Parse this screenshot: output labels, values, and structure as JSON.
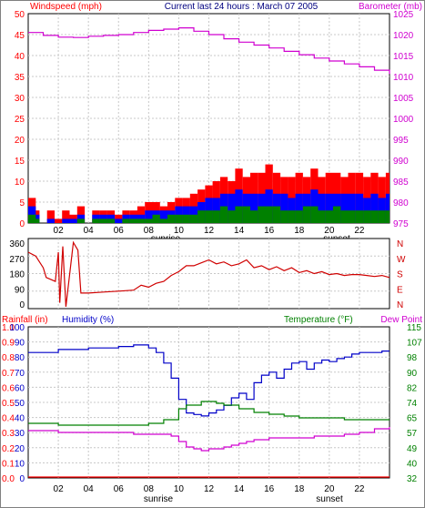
{
  "header": {
    "left_title": "Windspeed (mph)",
    "center_title": "Current last 24 hours : March 07 2005",
    "right_title": "Barometer (mb)"
  },
  "colors": {
    "frame": "#000000",
    "grid": "#c8c8c8",
    "wind_gust": "#ff0000",
    "wind_avg": "#0000ff",
    "wind_low": "#008000",
    "barometer": "#d000d0",
    "direction": "#d00000",
    "humidity": "#0000c8",
    "temperature": "#008000",
    "dew_point": "#d000d0",
    "rainfall": "#ff0000",
    "left_axis_red": "#ff0000",
    "left_axis_blue": "#0000c8",
    "right_axis_green": "#008000",
    "right_axis_magenta": "#d000d0"
  },
  "chart_data": [
    {
      "type": "line",
      "id": "wind_baro",
      "ylabel_left": "Windspeed (mph)",
      "ylabel_right": "Barometer (mb)",
      "ylim_left": [
        0,
        50
      ],
      "ylim_right": [
        975,
        1025
      ],
      "ticks_left": [
        "0",
        "5",
        "10",
        "15",
        "20",
        "25",
        "30",
        "35",
        "40",
        "45",
        "50"
      ],
      "ticks_right": [
        "975",
        "980",
        "985",
        "990",
        "995",
        "1000",
        "1005",
        "1010",
        "1015",
        "1020",
        "1025"
      ],
      "x_ticks": [
        "02",
        "04",
        "06",
        "08",
        "10",
        "12",
        "14",
        "16",
        "18",
        "20",
        "22"
      ],
      "markers": {
        "sunrise": "sunrise",
        "sunset": "sunset"
      },
      "grid": true,
      "series": [
        {
          "name": "Windspeed gust",
          "axis": "left",
          "color_key": "wind_gust",
          "x": [
            0,
            0.5,
            1,
            1.5,
            2,
            2.5,
            3,
            3.5,
            4,
            4.5,
            5,
            5.5,
            6,
            6.5,
            7,
            7.5,
            8,
            8.5,
            9,
            9.5,
            10,
            10.5,
            11,
            11.5,
            12,
            12.5,
            13,
            13.5,
            14,
            14.5,
            15,
            15.5,
            16,
            16.5,
            17,
            17.5,
            18,
            18.5,
            19,
            19.5,
            20,
            20.5,
            21,
            21.5,
            22,
            22.5,
            23,
            23.5,
            24
          ],
          "values": [
            6,
            3,
            0,
            3,
            1,
            3,
            2,
            4,
            0,
            3,
            3,
            3,
            2,
            3,
            3,
            4,
            5,
            5,
            4,
            5,
            6,
            6,
            7,
            8,
            9,
            10,
            11,
            10,
            13,
            11,
            12,
            12,
            14,
            12,
            11,
            11,
            12,
            11,
            13,
            11,
            12,
            12,
            11,
            12,
            12,
            11,
            12,
            11,
            12
          ]
        },
        {
          "name": "Windspeed average",
          "axis": "left",
          "color_key": "wind_avg",
          "x": [
            0,
            0.5,
            1,
            1.5,
            2,
            2.5,
            3,
            3.5,
            4,
            4.5,
            5,
            5.5,
            6,
            6.5,
            7,
            7.5,
            8,
            8.5,
            9,
            9.5,
            10,
            10.5,
            11,
            11.5,
            12,
            12.5,
            13,
            13.5,
            14,
            14.5,
            15,
            15.5,
            16,
            16.5,
            17,
            17.5,
            18,
            18.5,
            19,
            19.5,
            20,
            20.5,
            21,
            21.5,
            22,
            22.5,
            23,
            23.5,
            24
          ],
          "values": [
            4,
            2,
            0,
            1,
            0,
            1,
            1,
            2,
            0,
            2,
            2,
            2,
            1,
            2,
            2,
            2,
            3,
            3,
            3,
            3,
            4,
            4,
            4,
            5,
            6,
            6,
            7,
            7,
            8,
            7,
            7,
            7,
            8,
            7,
            7,
            6,
            7,
            7,
            8,
            7,
            7,
            7,
            7,
            7,
            7,
            6,
            7,
            6,
            7
          ]
        },
        {
          "name": "Windspeed low",
          "axis": "left",
          "color_key": "wind_low",
          "x": [
            0,
            0.5,
            1,
            1.5,
            2,
            2.5,
            3,
            3.5,
            4,
            4.5,
            5,
            5.5,
            6,
            6.5,
            7,
            7.5,
            8,
            8.5,
            9,
            9.5,
            10,
            10.5,
            11,
            11.5,
            12,
            12.5,
            13,
            13.5,
            14,
            14.5,
            15,
            15.5,
            16,
            16.5,
            17,
            17.5,
            18,
            18.5,
            19,
            19.5,
            20,
            20.5,
            21,
            21.5,
            22,
            22.5,
            23,
            23.5,
            24
          ],
          "values": [
            2,
            1,
            0,
            0,
            0,
            0,
            0,
            1,
            0,
            1,
            1,
            1,
            0,
            1,
            1,
            1,
            1,
            2,
            1,
            2,
            2,
            2,
            2,
            3,
            3,
            3,
            4,
            3,
            4,
            4,
            3,
            4,
            4,
            4,
            3,
            3,
            3,
            4,
            4,
            3,
            3,
            4,
            3,
            3,
            3,
            3,
            3,
            3,
            3
          ]
        },
        {
          "name": "Barometer",
          "axis": "right",
          "color_key": "barometer",
          "x": [
            0,
            1,
            2,
            3,
            4,
            5,
            6,
            7,
            8,
            9,
            10,
            11,
            12,
            13,
            14,
            15,
            16,
            17,
            18,
            19,
            20,
            21,
            22,
            23,
            24
          ],
          "values": [
            1020.5,
            1019.8,
            1019.4,
            1019.3,
            1019.6,
            1019.8,
            1020.0,
            1020.5,
            1021.0,
            1021.3,
            1021.6,
            1020.8,
            1020.0,
            1019.0,
            1018.2,
            1017.5,
            1016.8,
            1016.0,
            1015.2,
            1014.4,
            1013.7,
            1013.0,
            1012.3,
            1011.5,
            1010.6
          ]
        }
      ]
    },
    {
      "type": "line",
      "id": "direction",
      "ylim": [
        0,
        360
      ],
      "ticks_left": [
        "0",
        "90",
        "180",
        "270",
        "360"
      ],
      "ticks_right": [
        "N",
        "E",
        "S",
        "W",
        "N"
      ],
      "grid": true,
      "series": [
        {
          "name": "Wind direction",
          "color_key": "direction",
          "x": [
            0,
            0.5,
            1,
            1.2,
            1.5,
            1.8,
            2,
            2.1,
            2.3,
            2.5,
            3,
            3.3,
            3.5,
            4,
            5,
            6,
            7,
            7.5,
            8,
            8.5,
            9,
            9.5,
            10,
            10.5,
            11,
            11.5,
            12,
            12.5,
            13,
            13.5,
            14,
            14.5,
            15,
            15.5,
            16,
            16.5,
            17,
            17.5,
            18,
            18.5,
            19,
            19.5,
            20,
            20.5,
            21,
            21.5,
            22,
            22.5,
            23,
            23.5,
            24
          ],
          "values": [
            290,
            270,
            210,
            160,
            150,
            140,
            290,
            30,
            320,
            10,
            340,
            300,
            80,
            80,
            85,
            90,
            95,
            120,
            110,
            130,
            140,
            170,
            190,
            220,
            220,
            235,
            250,
            230,
            240,
            220,
            230,
            250,
            210,
            220,
            200,
            215,
            195,
            210,
            185,
            195,
            180,
            190,
            175,
            180,
            170,
            175,
            175,
            170,
            165,
            170,
            160
          ]
        }
      ]
    },
    {
      "type": "line",
      "id": "rain_hum_temp",
      "ylabel_rain": "Rainfall (in)",
      "ylabel_humidity": "Humidity (%)",
      "ylabel_temperature": "Temperature (°F)",
      "ylabel_dew_point": "Dew Point",
      "ylim_rain": [
        0,
        1.0
      ],
      "ylim_humidity": [
        0,
        100
      ],
      "ylim_temperature": [
        32,
        115
      ],
      "ticks_rain": [
        "0.0",
        "0.1",
        "0.2",
        "0.3",
        "0.4",
        "0.5",
        "0.6",
        "0.7",
        "0.8",
        "0.9",
        "1.0"
      ],
      "ticks_humidity": [
        "0",
        "10",
        "20",
        "30",
        "40",
        "50",
        "60",
        "70",
        "80",
        "90",
        "100"
      ],
      "ticks_temperature": [
        "32",
        "40",
        "49",
        "57",
        "65",
        "74",
        "82",
        "90",
        "98",
        "107",
        "115"
      ],
      "x_ticks": [
        "02",
        "04",
        "06",
        "08",
        "10",
        "12",
        "14",
        "16",
        "18",
        "20",
        "22"
      ],
      "markers": {
        "sunrise": "sunrise",
        "sunset": "sunset"
      },
      "grid": true,
      "series": [
        {
          "name": "Humidity",
          "axis": "humidity",
          "color_key": "humidity",
          "x": [
            0,
            1,
            2,
            3,
            4,
            5,
            6,
            7,
            7.5,
            8,
            8.5,
            9,
            9.5,
            10,
            10.5,
            11,
            11.5,
            12,
            12.5,
            13,
            13.5,
            14,
            14.5,
            15,
            15.5,
            16,
            16.5,
            17,
            17.5,
            18,
            18.5,
            19,
            19.5,
            20,
            20.5,
            21,
            21.5,
            22,
            22.5,
            23,
            23.5,
            24
          ],
          "values": [
            83,
            83,
            85,
            85,
            86,
            86,
            87,
            88,
            88,
            86,
            83,
            76,
            66,
            52,
            43,
            42,
            41,
            43,
            45,
            48,
            53,
            56,
            52,
            63,
            68,
            70,
            66,
            72,
            76,
            77,
            72,
            76,
            78,
            77,
            79,
            80,
            82,
            83,
            83,
            83,
            84,
            84
          ]
        },
        {
          "name": "Temperature",
          "axis": "temperature",
          "color_key": "temperature",
          "x": [
            0,
            1,
            2,
            3,
            4,
            5,
            6,
            7,
            8,
            9,
            10,
            10.5,
            11,
            11.5,
            12,
            12.5,
            13,
            13.5,
            14,
            15,
            16,
            17,
            18,
            19,
            20,
            21,
            22,
            23,
            24
          ],
          "values": [
            62,
            62,
            61,
            61,
            61,
            61,
            61,
            61,
            62,
            64,
            70,
            72,
            72,
            74,
            74,
            73,
            72,
            72,
            70,
            68,
            67,
            66,
            65,
            65,
            65,
            64,
            64,
            64,
            64
          ]
        },
        {
          "name": "Dew Point",
          "axis": "temperature",
          "color_key": "dew_point",
          "x": [
            0,
            1,
            2,
            3,
            4,
            5,
            6,
            7,
            8,
            9,
            9.5,
            10,
            10.5,
            11,
            11.5,
            12,
            12.5,
            13,
            13.5,
            14,
            14.5,
            15,
            16,
            17,
            18,
            19,
            20,
            21,
            22,
            23,
            24
          ],
          "values": [
            58,
            58,
            57,
            57,
            57,
            57,
            57,
            56,
            56,
            56,
            55,
            52,
            49,
            48,
            47,
            48,
            48,
            49,
            50,
            51,
            52,
            53,
            54,
            54,
            54,
            55,
            55,
            56,
            57,
            59,
            60
          ]
        },
        {
          "name": "Rainfall",
          "axis": "rain",
          "color_key": "rainfall",
          "x": [
            0,
            24
          ],
          "values": [
            0,
            0
          ]
        }
      ]
    }
  ]
}
